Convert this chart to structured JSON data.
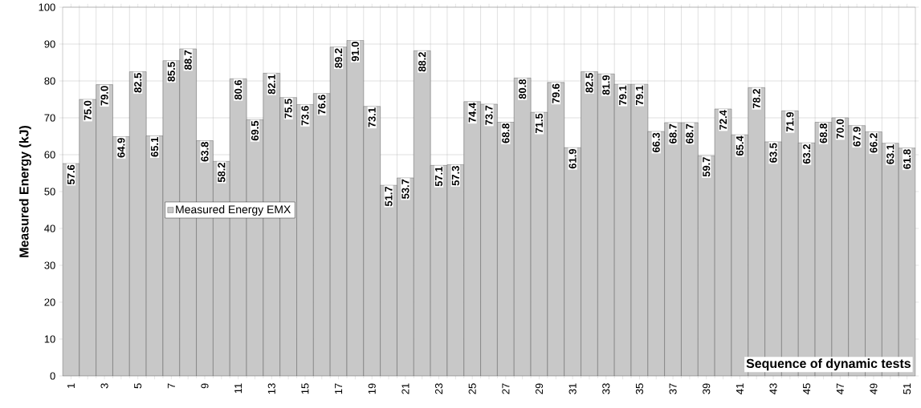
{
  "chart_data": {
    "type": "bar",
    "xlabel": "Sequence of dynamic tests",
    "ylabel": "Measured Energy (kJ)",
    "categories": [
      "1",
      null,
      "3",
      null,
      "5",
      null,
      "7",
      null,
      "9",
      null,
      "11",
      null,
      "13",
      null,
      "15",
      null,
      "17",
      null,
      "19",
      null,
      "21",
      null,
      "23",
      null,
      "25",
      null,
      "27",
      null,
      "29",
      null,
      "31",
      null,
      "33",
      null,
      "35",
      null,
      "37",
      null,
      "39",
      null,
      "41",
      null,
      "43",
      null,
      "45",
      null,
      "47",
      null,
      "49",
      null,
      "51"
    ],
    "series": [
      {
        "name": "Measured Energy EMX",
        "color": "#c8c8c8",
        "values": [
          57.6,
          75.0,
          79.0,
          64.9,
          82.5,
          65.1,
          85.5,
          88.7,
          63.8,
          58.2,
          80.6,
          69.5,
          82.1,
          75.5,
          73.6,
          76.6,
          89.2,
          91.0,
          73.1,
          51.7,
          53.7,
          88.2,
          57.1,
          57.3,
          74.4,
          73.7,
          68.8,
          80.8,
          71.5,
          79.6,
          61.9,
          82.5,
          81.9,
          79.1,
          79.1,
          66.3,
          68.7,
          68.7,
          59.7,
          72.4,
          65.4,
          78.2,
          63.5,
          71.9,
          63.2,
          68.8,
          70.0,
          67.9,
          66.2,
          63.1,
          61.8
        ],
        "value_labels": [
          "57.6",
          "75.0",
          "79.0",
          "64.9",
          "82.5",
          "65.1",
          "85.5",
          "88.7",
          "63.8",
          "58.2",
          "80.6",
          "69.5",
          "82.1",
          "75.5",
          "73.6",
          "76.6",
          "89.2",
          "91.0",
          "73.1",
          "51.7",
          "53.7",
          "88.2",
          "57.1",
          "57.3",
          "74.4",
          "73.7",
          "68.8",
          "80.8",
          "71.5",
          "79.6",
          "61.9",
          "82.5",
          "81.9",
          "79.1",
          "79.1",
          "66.3",
          "68.7",
          "68.7",
          "59.7",
          "72.4",
          "65.4",
          "78.2",
          "63.5",
          "71.9",
          "63.2",
          "68.8",
          "70.0",
          "67.9",
          "66.2",
          "63.1",
          "61.8"
        ]
      }
    ],
    "ylim": [
      0,
      100
    ],
    "yticks": [
      0,
      10,
      20,
      30,
      40,
      50,
      60,
      70,
      80,
      90,
      100
    ],
    "grid": true,
    "legend": "left"
  }
}
